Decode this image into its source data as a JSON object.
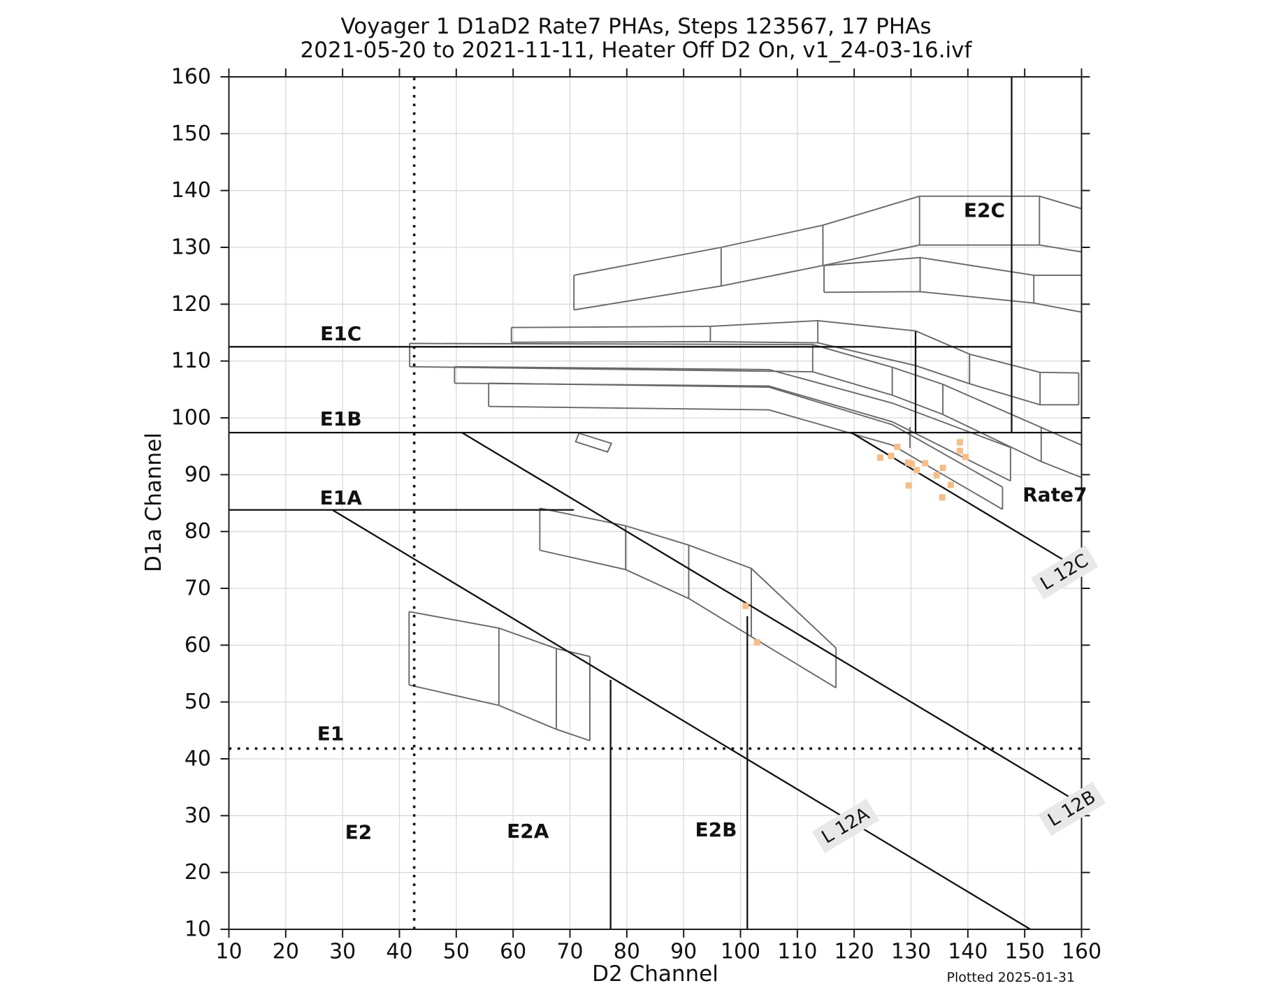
{
  "page": {
    "title_line1": "Voyager 1 D1aD2 Rate7 PHAs, Steps 123567, 17 PHAs",
    "title_line2": "2021-05-20 to 2021-11-11, Heater Off D2 On, v1_24-03-16.ivf",
    "x_axis_label": "D2 Channel",
    "y_axis_label": "D1a Channel",
    "footnote": "Plotted 2025-01-31"
  },
  "chart_data": {
    "type": "scatter",
    "title": "Voyager 1 D1aD2 Rate7 PHAs, Steps 123567, 17 PHAs — 2021-05-20 to 2021-11-11, Heater Off D2 On, v1_24-03-16.ivf",
    "xlabel": "D2 Channel",
    "ylabel": "D1a Channel",
    "xlim": [
      10,
      160
    ],
    "ylim": [
      10,
      160
    ],
    "grid": true,
    "xticks": [
      10,
      20,
      30,
      40,
      50,
      60,
      70,
      80,
      90,
      100,
      110,
      120,
      130,
      140,
      150,
      160
    ],
    "yticks": [
      10,
      20,
      30,
      40,
      50,
      60,
      70,
      80,
      90,
      100,
      110,
      120,
      130,
      140,
      150,
      160
    ],
    "colors": {
      "grid": "#d9d9d9",
      "spine": "#1c1c1c",
      "band": "#686868",
      "black_line": "#111111",
      "point": "#f5bd89",
      "label_bg": "#e8e8e8"
    },
    "pha_points": [
      [
        124.6,
        93.0
      ],
      [
        126.5,
        93.3
      ],
      [
        127.6,
        94.9
      ],
      [
        129.5,
        92.1
      ],
      [
        130.1,
        91.9
      ],
      [
        132.5,
        92.0
      ],
      [
        135.6,
        91.2
      ],
      [
        134.5,
        89.9
      ],
      [
        138.6,
        95.7
      ],
      [
        138.6,
        94.2
      ],
      [
        139.6,
        93.1
      ],
      [
        137.0,
        88.2
      ],
      [
        129.6,
        88.1
      ],
      [
        135.5,
        86.0
      ],
      [
        131.0,
        90.8
      ],
      [
        100.9,
        66.9
      ],
      [
        102.9,
        60.5
      ]
    ],
    "boundary_lines": [
      {
        "name": "e1a-line",
        "x1": 10,
        "y1": 83.8,
        "x2": 70.7,
        "y2": 83.8
      },
      {
        "name": "e1b-line",
        "x1": 10,
        "y1": 97.4,
        "x2": 160,
        "y2": 97.4
      },
      {
        "name": "e1c-line",
        "x1": 10,
        "y1": 112.5,
        "x2": 147.7,
        "y2": 112.5
      },
      {
        "name": "e2a-line",
        "x1": 77.15,
        "y1": 10,
        "x2": 77.15,
        "y2": 53.9
      },
      {
        "name": "e2b-line",
        "x1": 101.2,
        "y1": 10,
        "x2": 101.2,
        "y2": 65.1
      },
      {
        "name": "e2c-line",
        "x1": 147.7,
        "y1": 97.4,
        "x2": 147.7,
        "y2": 160
      },
      {
        "name": "step-131-line",
        "x1": 130.8,
        "y1": 97.4,
        "x2": 130.8,
        "y2": 115.2
      },
      {
        "name": "l12a-line",
        "x1": 28.2,
        "y1": 83.8,
        "x2": 151,
        "y2": 10
      },
      {
        "name": "l12b-line",
        "x1": 51,
        "y1": 97.4,
        "x2": 160,
        "y2": 32
      },
      {
        "name": "l12c-line",
        "x1": 119.5,
        "y1": 97.4,
        "x2": 160,
        "y2": 73.1
      }
    ],
    "dotted_lines": [
      {
        "name": "e1-dotted",
        "x1": 10,
        "y1": 41.8,
        "x2": 160,
        "y2": 41.8
      },
      {
        "name": "e2-dotted",
        "x1": 42.6,
        "y1": 10,
        "x2": 42.6,
        "y2": 160
      }
    ],
    "bands": [
      {
        "name": "band-a",
        "top": [
          [
            70.7,
            125.1
          ],
          [
            96.6,
            130.0
          ],
          [
            114.5,
            133.9
          ],
          [
            131.5,
            139.0
          ]
        ],
        "bottom": [
          [
            70.7,
            119.0
          ],
          [
            96.6,
            123.2
          ],
          [
            114.5,
            126.8
          ],
          [
            131.5,
            130.4
          ]
        ],
        "dividers": [
          [
            96.6,
            123.2,
            130.0
          ],
          [
            114.5,
            126.8,
            133.9
          ]
        ],
        "close_left": true,
        "close_right": false
      },
      {
        "name": "e2c-box",
        "top": [
          [
            131.5,
            139.0
          ],
          [
            152.6,
            139.0
          ]
        ],
        "bottom": [
          [
            131.5,
            130.4
          ],
          [
            152.6,
            130.4
          ]
        ],
        "dividers": [],
        "close_left": true,
        "close_right": true
      },
      {
        "name": "band-b",
        "top": [
          [
            114.7,
            126.8
          ],
          [
            131.6,
            128.2
          ],
          [
            151.6,
            125.1
          ],
          [
            160,
            125.1
          ]
        ],
        "bottom": [
          [
            114.7,
            122.1
          ],
          [
            131.6,
            122.2
          ],
          [
            151.6,
            120.2
          ],
          [
            160,
            118.6
          ]
        ],
        "dividers": [
          [
            131.6,
            122.2,
            128.2
          ],
          [
            151.6,
            120.2,
            125.1
          ]
        ],
        "close_left": true,
        "close_right": false
      },
      {
        "name": "band-c",
        "top": [
          [
            59.7,
            115.9
          ],
          [
            94.7,
            116.1
          ],
          [
            113.6,
            117.1
          ],
          [
            130.8,
            115.3
          ],
          [
            140.3,
            111.2
          ],
          [
            152.7,
            108.0
          ],
          [
            159.5,
            107.9
          ]
        ],
        "bottom": [
          [
            59.7,
            113.3
          ],
          [
            94.7,
            113.4
          ],
          [
            113.6,
            113.2
          ],
          [
            130.8,
            109.2
          ],
          [
            140.3,
            106.0
          ],
          [
            152.7,
            102.3
          ],
          [
            159.5,
            102.3
          ]
        ],
        "dividers": [
          [
            94.7,
            113.4,
            116.1
          ],
          [
            113.6,
            113.2,
            117.1
          ],
          [
            140.3,
            106.0,
            111.2
          ],
          [
            152.7,
            102.3,
            108.0
          ]
        ],
        "close_left": true,
        "close_right": true
      },
      {
        "name": "band-d",
        "top": [
          [
            41.8,
            113.1
          ],
          [
            112.7,
            112.9
          ],
          [
            126.7,
            108.9
          ],
          [
            135.6,
            105.9
          ],
          [
            152.9,
            98.3
          ],
          [
            160,
            95.2
          ]
        ],
        "bottom": [
          [
            41.8,
            109.0
          ],
          [
            112.7,
            108.1
          ],
          [
            126.7,
            104.0
          ],
          [
            135.6,
            100.6
          ],
          [
            152.9,
            92.3
          ],
          [
            160,
            89.5
          ]
        ],
        "dividers": [
          [
            112.7,
            108.1,
            112.9
          ],
          [
            126.7,
            104.0,
            108.9
          ],
          [
            135.6,
            100.6,
            105.9
          ],
          [
            152.9,
            92.3,
            98.3
          ]
        ],
        "close_left": true,
        "close_right": false
      },
      {
        "name": "band-e",
        "top": [
          [
            49.7,
            109.0
          ],
          [
            105,
            108.5
          ],
          [
            126.7,
            102.6
          ],
          [
            147.5,
            94.8
          ]
        ],
        "bottom": [
          [
            49.7,
            106.1
          ],
          [
            105,
            105.6
          ],
          [
            126.7,
            99.3
          ],
          [
            147.5,
            88.9
          ]
        ],
        "dividers": [],
        "close_left": true,
        "close_right": true
      },
      {
        "name": "band-f",
        "top": [
          [
            55.7,
            106.1
          ],
          [
            105,
            105.4
          ],
          [
            126.7,
            98.8
          ],
          [
            146.1,
            87.8
          ]
        ],
        "bottom": [
          [
            55.7,
            102.0
          ],
          [
            105,
            101.4
          ],
          [
            126.7,
            95.2
          ],
          [
            146.1,
            83.9
          ]
        ],
        "dividers": [
          [
            129.8,
            94.7,
            98.4
          ]
        ],
        "close_left": true,
        "close_right": true
      },
      {
        "name": "e2a-band",
        "top": [
          [
            41.7,
            65.9
          ],
          [
            57.5,
            63.0
          ],
          [
            67.6,
            59.4
          ],
          [
            73.5,
            58.0
          ]
        ],
        "bottom": [
          [
            41.7,
            53.0
          ],
          [
            57.5,
            49.4
          ],
          [
            67.6,
            45.2
          ],
          [
            73.5,
            43.2
          ]
        ],
        "dividers": [
          [
            57.5,
            49.4,
            63.0
          ],
          [
            67.6,
            45.2,
            59.4
          ]
        ],
        "close_left": true,
        "close_right": true
      },
      {
        "name": "e2b-band",
        "top": [
          [
            64.7,
            84.1
          ],
          [
            79.8,
            81.0
          ],
          [
            90.9,
            77.6
          ],
          [
            101.9,
            73.5
          ],
          [
            116.8,
            59.5
          ]
        ],
        "bottom": [
          [
            64.7,
            76.7
          ],
          [
            79.8,
            73.3
          ],
          [
            90.9,
            68.2
          ],
          [
            101.9,
            61.5
          ],
          [
            116.8,
            52.5
          ]
        ],
        "dividers": [
          [
            79.8,
            73.3,
            81.0
          ],
          [
            90.9,
            68.2,
            77.6
          ],
          [
            101.9,
            61.5,
            73.5
          ]
        ],
        "close_left": true,
        "close_right": true
      }
    ],
    "extra_segments": [
      {
        "name": "e2c-tail-top",
        "pts": [
          [
            152.6,
            139.0
          ],
          [
            160,
            136.8
          ]
        ]
      },
      {
        "name": "e2c-tail-bottom",
        "pts": [
          [
            152.6,
            130.4
          ],
          [
            160,
            129.2
          ]
        ]
      }
    ],
    "quads": [
      {
        "name": "alpha-quad",
        "pts": [
          [
            71.6,
            97.3
          ],
          [
            77.3,
            95.5
          ],
          [
            76.6,
            94.0
          ],
          [
            71.0,
            95.8
          ]
        ]
      }
    ],
    "region_labels": [
      {
        "text": "E1C",
        "x": 29.7,
        "y": 114.8,
        "bold": true,
        "size": 28,
        "rot": 0,
        "bg": false
      },
      {
        "text": "E1B",
        "x": 29.7,
        "y": 99.8,
        "bold": true,
        "size": 28,
        "rot": 0,
        "bg": false
      },
      {
        "text": "E1A",
        "x": 29.7,
        "y": 85.9,
        "bold": true,
        "size": 28,
        "rot": 0,
        "bg": false
      },
      {
        "text": "E1",
        "x": 27.9,
        "y": 44.4,
        "bold": true,
        "size": 28,
        "rot": 0,
        "bg": false
      },
      {
        "text": "E2",
        "x": 32.8,
        "y": 27.1,
        "bold": true,
        "size": 28,
        "rot": 0,
        "bg": false
      },
      {
        "text": "E2A",
        "x": 62.6,
        "y": 27.3,
        "bold": true,
        "size": 28,
        "rot": 0,
        "bg": false
      },
      {
        "text": "E2B",
        "x": 95.7,
        "y": 27.5,
        "bold": true,
        "size": 28,
        "rot": 0,
        "bg": false
      },
      {
        "text": "E2C",
        "x": 142.9,
        "y": 136.5,
        "bold": true,
        "size": 28,
        "rot": 0,
        "bg": false
      },
      {
        "text": "Rate7",
        "x": 155.3,
        "y": 86.5,
        "bold": true,
        "size": 28,
        "rot": 0,
        "bg": false
      },
      {
        "text": "L 12A",
        "x": 118.5,
        "y": 28.2,
        "bold": false,
        "size": 26,
        "rot": -31,
        "bg": true
      },
      {
        "text": "L 12B",
        "x": 158.3,
        "y": 31.2,
        "bold": false,
        "size": 26,
        "rot": -31,
        "bg": true
      },
      {
        "text": "L 12C",
        "x": 157.0,
        "y": 72.8,
        "bold": false,
        "size": 26,
        "rot": -31,
        "bg": true
      }
    ]
  }
}
